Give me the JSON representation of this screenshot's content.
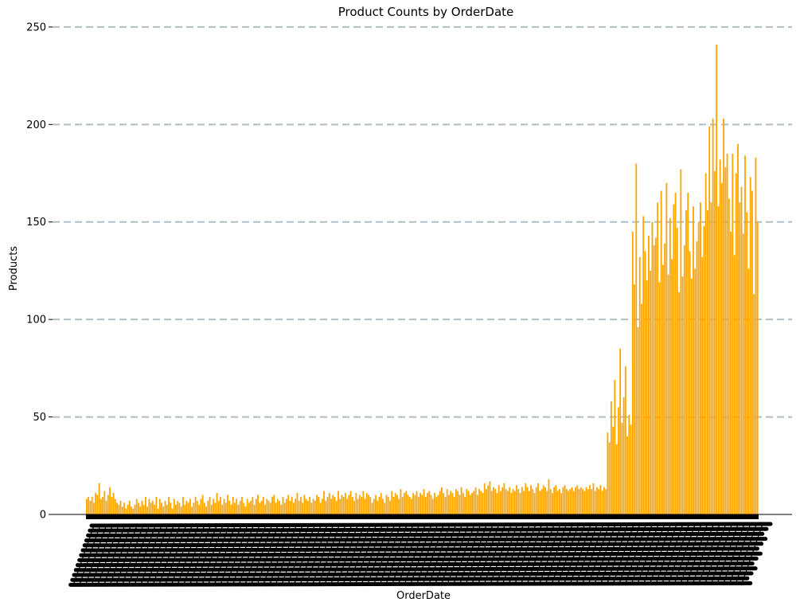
{
  "chart_data": {
    "type": "bar",
    "title": "Product Counts by OrderDate",
    "xlabel": "OrderDate",
    "ylabel": "Products",
    "ylim": [
      0,
      252
    ],
    "y_ticks": [
      0,
      50,
      100,
      150,
      200,
      250
    ],
    "grid": "horizontal dashed",
    "x_tick_labels_rotated_degrees": 70,
    "x_tick_labels_legible": false,
    "colors": {
      "bar": "#FFA500",
      "grid": "#B0BEC5",
      "axis": "#000000",
      "tick_label_blob": "#000000"
    },
    "series": [
      {
        "values": [
          8,
          9,
          7,
          9,
          6,
          11,
          10,
          16,
          8,
          9,
          12,
          7,
          10,
          14,
          9,
          11,
          8,
          6,
          5,
          7,
          4,
          6,
          3,
          5,
          7,
          4,
          3,
          5,
          8,
          6,
          4,
          7,
          5,
          9,
          4,
          8,
          6,
          7,
          5,
          9,
          3,
          8,
          6,
          4,
          7,
          5,
          9,
          6,
          3,
          8,
          5,
          7,
          6,
          4,
          9,
          5,
          7,
          6,
          8,
          4,
          6,
          9,
          7,
          5,
          8,
          10,
          6,
          4,
          7,
          9,
          5,
          8,
          6,
          11,
          7,
          9,
          5,
          8,
          6,
          10,
          7,
          5,
          9,
          6,
          8,
          5,
          7,
          9,
          6,
          4,
          8,
          6,
          7,
          9,
          5,
          8,
          10,
          6,
          7,
          9,
          5,
          8,
          7,
          6,
          9,
          10,
          6,
          8,
          7,
          5,
          9,
          6,
          8,
          10,
          7,
          9,
          6,
          8,
          11,
          7,
          9,
          6,
          10,
          8,
          7,
          9,
          6,
          8,
          7,
          10,
          9,
          6,
          8,
          12,
          7,
          9,
          11,
          8,
          10,
          9,
          7,
          12,
          8,
          10,
          9,
          11,
          8,
          10,
          12,
          9,
          7,
          11,
          8,
          10,
          9,
          12,
          8,
          11,
          10,
          9,
          6,
          8,
          10,
          7,
          9,
          11,
          8,
          6,
          10,
          9,
          7,
          12,
          9,
          11,
          10,
          8,
          13,
          9,
          11,
          12,
          10,
          9,
          8,
          11,
          10,
          12,
          9,
          11,
          10,
          13,
          9,
          11,
          12,
          10,
          8,
          11,
          9,
          10,
          12,
          14,
          11,
          9,
          13,
          10,
          12,
          11,
          9,
          13,
          12,
          10,
          14,
          11,
          9,
          13,
          12,
          10,
          11,
          12,
          14,
          10,
          13,
          12,
          11,
          16,
          13,
          15,
          17,
          12,
          14,
          13,
          11,
          15,
          12,
          14,
          16,
          13,
          12,
          14,
          11,
          13,
          12,
          15,
          13,
          11,
          14,
          12,
          16,
          14,
          12,
          15,
          13,
          11,
          14,
          16,
          12,
          13,
          15,
          14,
          12,
          18,
          13,
          11,
          14,
          15,
          12,
          13,
          11,
          14,
          15,
          13,
          12,
          13,
          14,
          12,
          14,
          15,
          13,
          14,
          13,
          12,
          14,
          13,
          15,
          13,
          16,
          12,
          14,
          13,
          15,
          12,
          14,
          13,
          42,
          37,
          58,
          45,
          69,
          36,
          55,
          85,
          47,
          60,
          76,
          40,
          51,
          46,
          145,
          118,
          180,
          96,
          132,
          108,
          153,
          135,
          120,
          143,
          125,
          150,
          138,
          142,
          160,
          119,
          166,
          128,
          139,
          170,
          123,
          152,
          131,
          159,
          165,
          147,
          114,
          177,
          122,
          138,
          156,
          165,
          135,
          121,
          158,
          126,
          140,
          150,
          160,
          132,
          148,
          175,
          156,
          199,
          160,
          203,
          176,
          241,
          158,
          182,
          170,
          203,
          178,
          185,
          162,
          145,
          185,
          133,
          175,
          190,
          160,
          168,
          144,
          184,
          155,
          126,
          173,
          166,
          113,
          183,
          150
        ]
      }
    ]
  }
}
